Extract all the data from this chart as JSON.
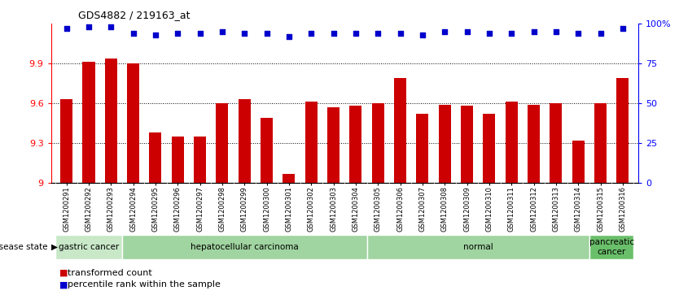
{
  "title": "GDS4882 / 219163_at",
  "samples": [
    "GSM1200291",
    "GSM1200292",
    "GSM1200293",
    "GSM1200294",
    "GSM1200295",
    "GSM1200296",
    "GSM1200297",
    "GSM1200298",
    "GSM1200299",
    "GSM1200300",
    "GSM1200301",
    "GSM1200302",
    "GSM1200303",
    "GSM1200304",
    "GSM1200305",
    "GSM1200306",
    "GSM1200307",
    "GSM1200308",
    "GSM1200309",
    "GSM1200310",
    "GSM1200311",
    "GSM1200312",
    "GSM1200313",
    "GSM1200314",
    "GSM1200315",
    "GSM1200316"
  ],
  "red_values": [
    9.63,
    9.91,
    9.94,
    9.9,
    9.38,
    9.35,
    9.35,
    9.6,
    9.63,
    9.49,
    9.07,
    9.61,
    9.57,
    9.58,
    9.6,
    9.79,
    9.52,
    9.59,
    9.58,
    9.52,
    9.61,
    9.59,
    9.6,
    9.32,
    9.6,
    9.79
  ],
  "blue_pct": [
    97,
    98,
    98,
    94,
    93,
    94,
    94,
    95,
    94,
    94,
    92,
    94,
    94,
    94,
    94,
    94,
    93,
    95,
    95,
    94,
    94,
    95,
    95,
    94,
    94,
    97
  ],
  "ylim_left": [
    9.0,
    10.2
  ],
  "ylim_right": [
    0,
    100
  ],
  "yticks_left": [
    9.0,
    9.3,
    9.6,
    9.9
  ],
  "ytick_labels_left": [
    "9",
    "9.3",
    "9.6",
    "9.9"
  ],
  "ytick_labels_right_pos": [
    0,
    25,
    50,
    75,
    100
  ],
  "ytick_labels_right": [
    "0",
    "25",
    "50",
    "75",
    "100%"
  ],
  "disease_groups": [
    {
      "label": "gastric cancer",
      "start": 0,
      "end": 3,
      "color": "#c8e8c8"
    },
    {
      "label": "hepatocellular carcinoma",
      "start": 3,
      "end": 14,
      "color": "#a0d4a0"
    },
    {
      "label": "normal",
      "start": 14,
      "end": 24,
      "color": "#a0d4a0"
    },
    {
      "label": "pancreatic\ncancer",
      "start": 24,
      "end": 26,
      "color": "#6abf6a"
    }
  ],
  "bar_color": "#cc0000",
  "dot_color": "#0000cc",
  "legend_red_label": "transformed count",
  "legend_blue_label": "percentile rank within the sample",
  "disease_state_label": "disease state"
}
